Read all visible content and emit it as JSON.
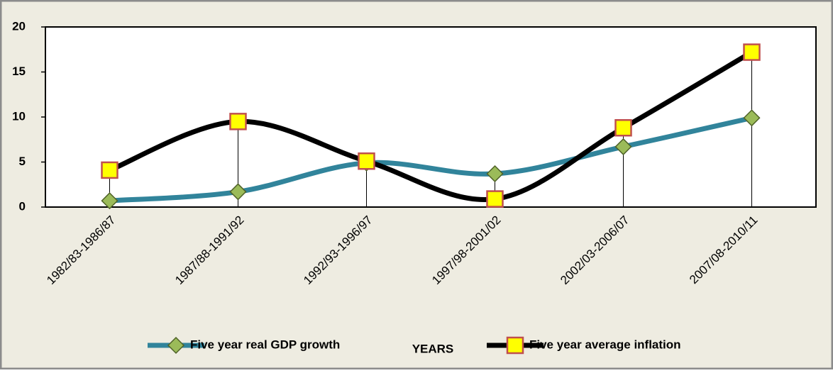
{
  "chart_data": {
    "type": "line",
    "categories": [
      "1982/83-1986/87",
      "1987/88-1991/92",
      "1992/93-1996/97",
      "1997/98-2001/02",
      "2002/03-2006/07",
      "2007/08-2010/11"
    ],
    "series": [
      {
        "name": "Five year real GDP growth",
        "color": "#31849b",
        "marker": "diamond",
        "marker_color": "#9bbb59",
        "values": [
          0.7,
          1.7,
          4.9,
          3.7,
          6.7,
          9.9
        ]
      },
      {
        "name": "Five year average inflation",
        "color": "#000000",
        "marker": "square",
        "marker_color": "#ffff00",
        "values": [
          4.1,
          9.5,
          5.1,
          0.9,
          8.8,
          17.2
        ]
      }
    ],
    "xlabel": "YEARS",
    "ylim": [
      0,
      20
    ],
    "yticks": [
      0,
      5,
      10,
      15,
      20
    ],
    "smooth": true,
    "drop_lines": true,
    "grid": false,
    "legend": "bottom"
  }
}
